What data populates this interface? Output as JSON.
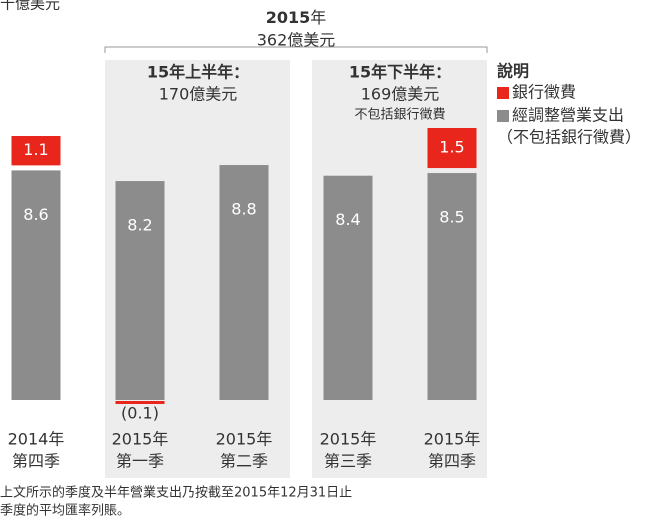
{
  "chart_data": {
    "type": "stacked_bar",
    "unit_label": "十億美元",
    "period_label": {
      "year": "2015",
      "suffix": "年",
      "total": "362億美元"
    },
    "panels": [
      {
        "title": "15年上半年：",
        "total": "170億美元"
      },
      {
        "title": "15年下半年：",
        "total": "169億美元",
        "note": "不包括銀行徵費"
      }
    ],
    "legend_title": "說明",
    "legend_note": "（不包括銀行徵費）",
    "categories": [
      "2014年",
      "2015年",
      "2015年",
      "2015年",
      "2015年"
    ],
    "category_sublabels": [
      "第四季",
      "第一季",
      "第二季",
      "第三季",
      "第四季"
    ],
    "series": [
      {
        "name": "經調整營業支出",
        "color": "#8c8c8c",
        "values": [
          8.6,
          8.2,
          8.8,
          8.4,
          8.5
        ]
      },
      {
        "name": "銀行徵費",
        "color": "#e8261c",
        "values": [
          1.1,
          -0.1,
          null,
          null,
          1.5
        ],
        "value_labels": [
          "1.1",
          "(0.1)",
          null,
          null,
          "1.5"
        ]
      }
    ],
    "footnote": [
      "上文所示的季度及半年營業支出乃按截至2015年12月31日止",
      "季度的平均匯率列賬。"
    ]
  }
}
